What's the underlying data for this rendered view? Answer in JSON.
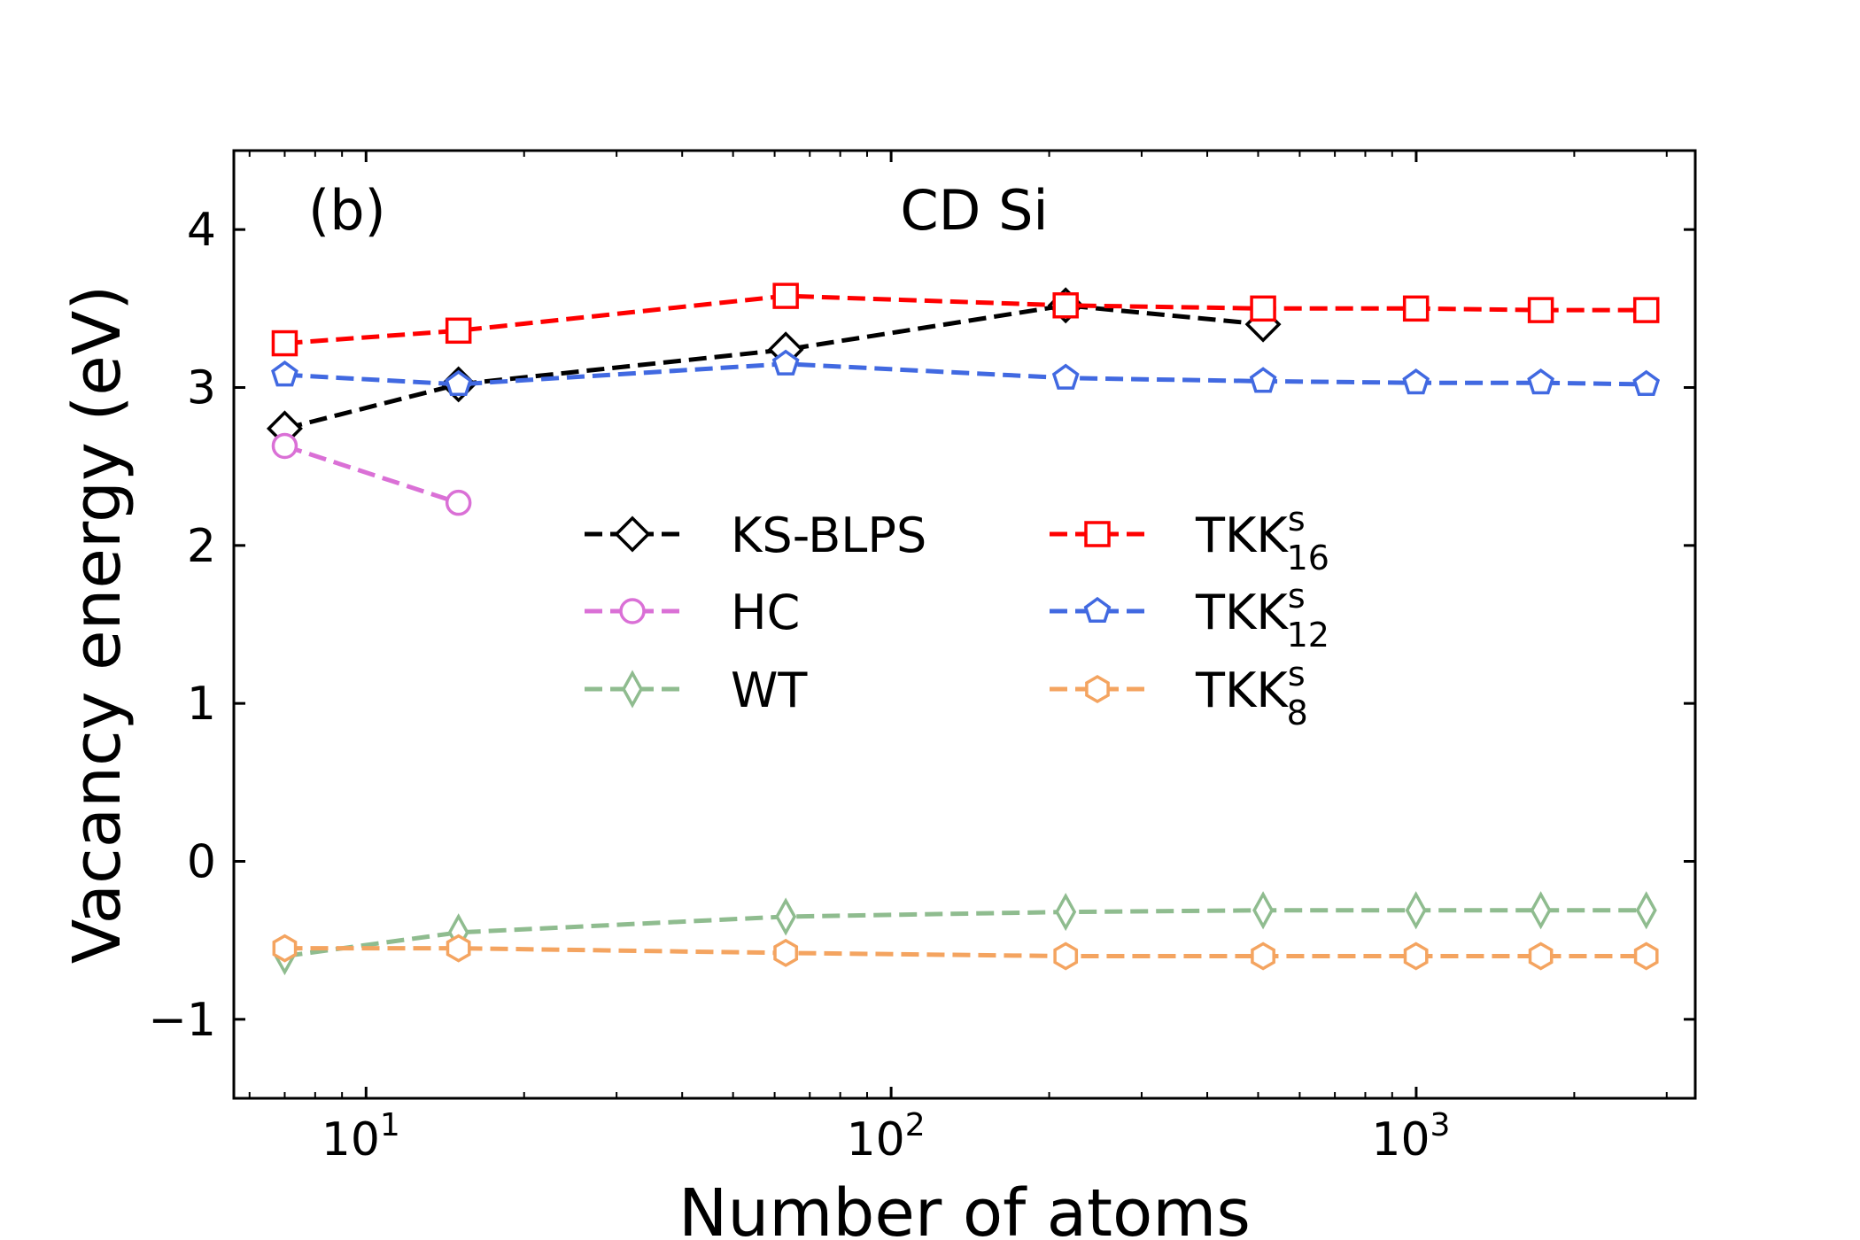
{
  "chart_data": {
    "type": "line",
    "title": "CD Si",
    "panel_label": "(b)",
    "xlabel": "Number of atoms",
    "ylabel": "Vacancy energy (eV)",
    "x_scale": "log",
    "xlim": [
      5.6,
      3400
    ],
    "ylim": [
      -1.5,
      4.5
    ],
    "x_ticks": [
      {
        "value": 10,
        "base": "10",
        "exp": "1"
      },
      {
        "value": 100,
        "base": "10",
        "exp": "2"
      },
      {
        "value": 1000,
        "base": "10",
        "exp": "3"
      }
    ],
    "y_ticks": [
      {
        "value": -1,
        "label": "−1"
      },
      {
        "value": 0,
        "label": "0"
      },
      {
        "value": 1,
        "label": "1"
      },
      {
        "value": 2,
        "label": "2"
      },
      {
        "value": 3,
        "label": "3"
      },
      {
        "value": 4,
        "label": "4"
      }
    ],
    "grid": false,
    "legend_position": "center",
    "series": [
      {
        "id": "ks-blps",
        "name": "KS-BLPS",
        "sub": "",
        "sup": "",
        "color": "#000000",
        "marker": "diamond",
        "x": [
          7,
          15,
          63,
          215,
          511
        ],
        "y": [
          2.74,
          3.02,
          3.24,
          3.52,
          3.4
        ]
      },
      {
        "id": "hc",
        "name": "HC",
        "sub": "",
        "sup": "",
        "color": "#DA70D6",
        "marker": "circle",
        "x": [
          7,
          15
        ],
        "y": [
          2.63,
          2.27
        ]
      },
      {
        "id": "wt",
        "name": "WT",
        "sub": "",
        "sup": "",
        "color": "#8FBC8F",
        "marker": "thin_diamond",
        "x": [
          7,
          15,
          63,
          215,
          511,
          999,
          1727,
          2743
        ],
        "y": [
          -0.6,
          -0.45,
          -0.35,
          -0.32,
          -0.31,
          -0.31,
          -0.31,
          -0.31
        ]
      },
      {
        "id": "tkk16",
        "name": "TKK",
        "sub": "16",
        "sup": "s",
        "color": "#FF0000",
        "marker": "square",
        "x": [
          7,
          15,
          63,
          215,
          511,
          999,
          1727,
          2743
        ],
        "y": [
          3.28,
          3.36,
          3.58,
          3.52,
          3.5,
          3.5,
          3.49,
          3.49
        ]
      },
      {
        "id": "tkk12",
        "name": "TKK",
        "sub": "12",
        "sup": "s",
        "color": "#4169E1",
        "marker": "pentagon",
        "x": [
          7,
          15,
          63,
          215,
          511,
          999,
          1727,
          2743
        ],
        "y": [
          3.08,
          3.02,
          3.15,
          3.06,
          3.04,
          3.03,
          3.03,
          3.02
        ]
      },
      {
        "id": "tkk8",
        "name": "TKK",
        "sub": "8",
        "sup": "s",
        "color": "#F4A460",
        "marker": "hexagon",
        "x": [
          7,
          15,
          63,
          215,
          511,
          999,
          1727,
          2743
        ],
        "y": [
          -0.55,
          -0.55,
          -0.58,
          -0.6,
          -0.6,
          -0.6,
          -0.6,
          -0.6
        ]
      }
    ]
  }
}
